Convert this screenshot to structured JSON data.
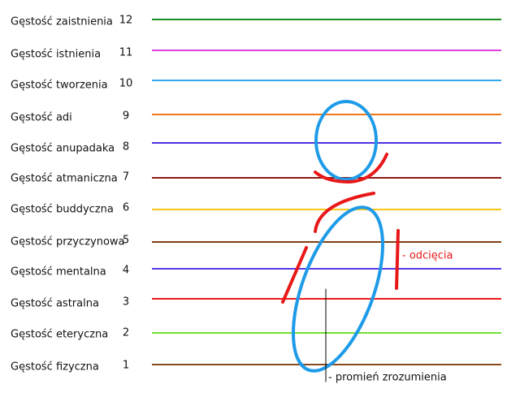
{
  "levels": [
    {
      "label": "Gęstość zaistnienia",
      "number": "12",
      "color": "#1e8c1e"
    },
    {
      "label": "Gęstość istnienia",
      "number": "11",
      "color": "#e040e0"
    },
    {
      "label": "Gęstość tworzenia",
      "number": "10",
      "color": "#30a8f0"
    },
    {
      "label": "Gęstość adi",
      "number": "9",
      "color": "#f07818"
    },
    {
      "label": "Gęstość anupadaka",
      "number": "8",
      "color": "#5030e0"
    },
    {
      "label": "Gęstość atmaniczna",
      "number": "7",
      "color": "#8a1a10"
    },
    {
      "label": "Gęstość buddyczna",
      "number": "6",
      "color": "#f8c818"
    },
    {
      "label": "Gęstość przyczynowa",
      "number": "5",
      "color": "#804010"
    },
    {
      "label": "Gęstość mentalna",
      "number": "4",
      "color": "#5838e8"
    },
    {
      "label": "Gęstość astralna",
      "number": "3",
      "color": "#f01818"
    },
    {
      "label": "Gęstość eteryczna",
      "number": "2",
      "color": "#70e030"
    },
    {
      "label": "Gęstość fizyczna",
      "number": "1",
      "color": "#8a4a1a"
    }
  ],
  "annotations": {
    "cut": "- odcięcia",
    "ray": "- promień zrozumienia"
  }
}
